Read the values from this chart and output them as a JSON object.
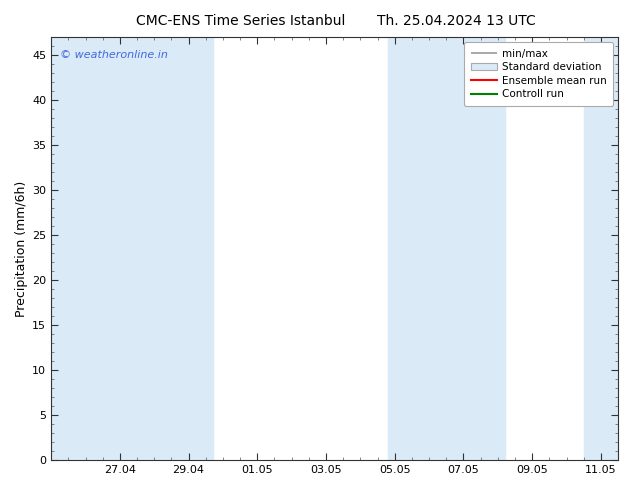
{
  "title_left": "CMC-ENS Time Series Istanbul",
  "title_right": "Th. 25.04.2024 13 UTC",
  "ylabel": "Precipitation (mm/6h)",
  "ylim": [
    0,
    47
  ],
  "yticks": [
    0,
    5,
    10,
    15,
    20,
    25,
    30,
    35,
    40,
    45
  ],
  "background_color": "#ffffff",
  "plot_bg_color": "#ffffff",
  "shade_color": "#daeaf7",
  "watermark": "© weatheronline.in",
  "watermark_color": "#4169E1",
  "legend_entries": [
    "min/max",
    "Standard deviation",
    "Ensemble mean run",
    "Controll run"
  ],
  "xtick_labels": [
    "27.04",
    "29.04",
    "01.05",
    "03.05",
    "05.05",
    "07.05",
    "09.05",
    "11.05"
  ],
  "x_min": -2.0,
  "x_max": 14.5,
  "xtick_positions": [
    0,
    2,
    4,
    6,
    8,
    10,
    12,
    14
  ],
  "shade_regions": [
    [
      -2.0,
      1.0
    ],
    [
      1.0,
      2.7
    ],
    [
      7.8,
      9.8
    ],
    [
      9.8,
      11.2
    ],
    [
      13.5,
      14.5
    ]
  ],
  "title_fontsize": 10,
  "ylabel_fontsize": 9,
  "tick_fontsize": 8,
  "watermark_fontsize": 8,
  "legend_fontsize": 7.5
}
